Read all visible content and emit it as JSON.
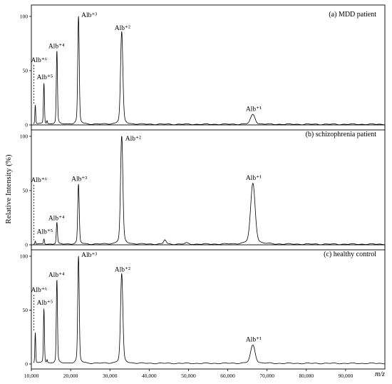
{
  "figure": {
    "ylabel": "Relative Intensity (%)",
    "xlabel": "m/z",
    "x_ticks": [
      "10,000",
      "20,000",
      "30,000",
      "40,000",
      "50,000",
      "60,000",
      "70,000",
      "80,000",
      "90,000"
    ],
    "y_ticks": [
      "0",
      "50",
      "100"
    ]
  },
  "chart_data": [
    {
      "type": "line",
      "title": "(a) MDD patient",
      "xlim": [
        10000,
        100000
      ],
      "ylim": [
        0,
        100
      ],
      "peaks": [
        {
          "label": "Alb⁺⁶",
          "mz": 11000,
          "intensity": 18,
          "width": 100
        },
        {
          "label": "Alb⁺⁵",
          "mz": 13200,
          "intensity": 38,
          "width": 120
        },
        {
          "label": "Alb⁺⁴",
          "mz": 16500,
          "intensity": 68,
          "width": 140
        },
        {
          "label": "Alb⁺³",
          "mz": 22000,
          "intensity": 100,
          "width": 180
        },
        {
          "label": "Alb⁺²",
          "mz": 33000,
          "intensity": 85,
          "width": 280
        },
        {
          "label": "Alb⁺¹",
          "mz": 66400,
          "intensity": 9,
          "width": 550
        }
      ],
      "minor_peaks": [
        {
          "mz": 14000,
          "intensity": 3,
          "width": 100
        }
      ]
    },
    {
      "type": "line",
      "title": "(b) schizophrenia patient",
      "xlim": [
        10000,
        100000
      ],
      "ylim": [
        0,
        100
      ],
      "peaks": [
        {
          "label": "Alb⁺⁶",
          "mz": 11000,
          "intensity": 3,
          "width": 100
        },
        {
          "label": "Alb⁺⁵",
          "mz": 13200,
          "intensity": 5,
          "width": 120
        },
        {
          "label": "Alb⁺⁴",
          "mz": 16500,
          "intensity": 20,
          "width": 140
        },
        {
          "label": "Alb⁺³",
          "mz": 22000,
          "intensity": 55,
          "width": 180
        },
        {
          "label": "Alb⁺²",
          "mz": 33000,
          "intensity": 100,
          "width": 280
        },
        {
          "label": "Alb⁺¹",
          "mz": 66400,
          "intensity": 56,
          "width": 550
        }
      ],
      "minor_peaks": [
        {
          "mz": 44000,
          "intensity": 4,
          "width": 300
        },
        {
          "mz": 49500,
          "intensity": 1,
          "width": 400
        }
      ]
    },
    {
      "type": "line",
      "title": "(c) healthy control",
      "xlim": [
        10000,
        100000
      ],
      "ylim": [
        0,
        100
      ],
      "peaks": [
        {
          "label": "Alb⁺⁶",
          "mz": 11000,
          "intensity": 29,
          "width": 100
        },
        {
          "label": "Alb⁺⁵",
          "mz": 13200,
          "intensity": 51,
          "width": 120
        },
        {
          "label": "Alb⁺⁴",
          "mz": 16500,
          "intensity": 78,
          "width": 140
        },
        {
          "label": "Alb⁺³",
          "mz": 22000,
          "intensity": 100,
          "width": 180
        },
        {
          "label": "Alb⁺²",
          "mz": 33000,
          "intensity": 83,
          "width": 280
        },
        {
          "label": "Alb⁺¹",
          "mz": 66400,
          "intensity": 17,
          "width": 550
        }
      ],
      "minor_peaks": [
        {
          "mz": 14000,
          "intensity": 3,
          "width": 100
        }
      ]
    }
  ]
}
